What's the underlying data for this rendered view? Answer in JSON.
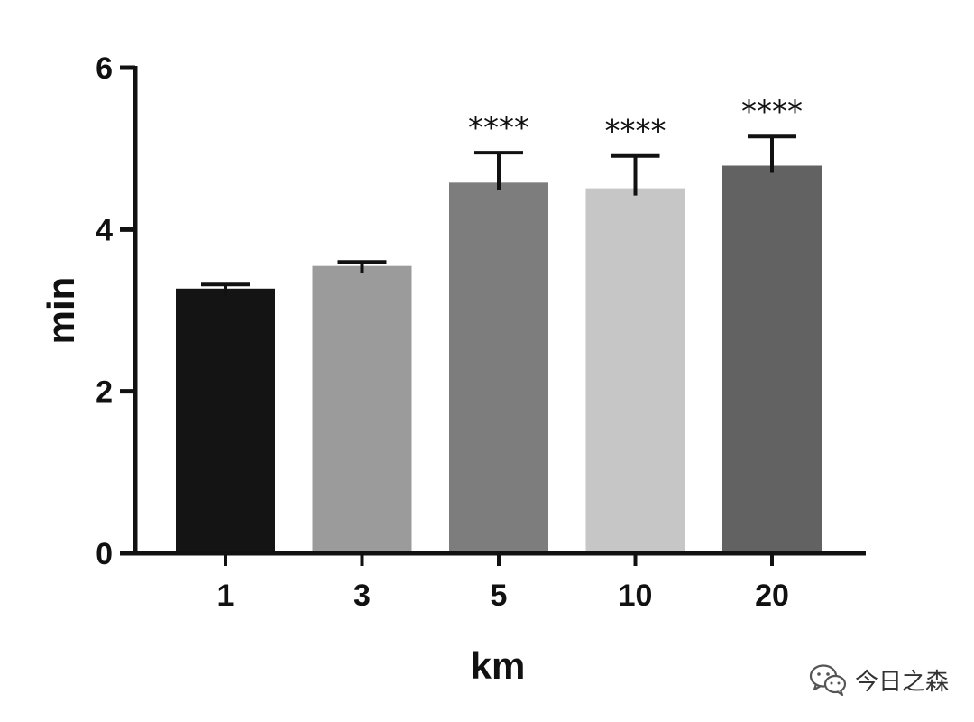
{
  "chart_data": {
    "type": "bar",
    "title": "",
    "xlabel": "km",
    "ylabel": "min",
    "ylim": [
      0,
      6
    ],
    "yticks": [
      0,
      2,
      4,
      6
    ],
    "grid": false,
    "categories": [
      "1",
      "3",
      "5",
      "10",
      "20"
    ],
    "values": [
      3.27,
      3.55,
      4.58,
      4.51,
      4.79
    ],
    "errors": [
      0.05,
      0.05,
      0.37,
      0.4,
      0.36
    ],
    "bar_colors": [
      "#141414",
      "#9b9b9b",
      "#7d7d7d",
      "#c6c6c6",
      "#626262"
    ],
    "annotations": [
      "",
      "",
      "****",
      "****",
      "****"
    ]
  },
  "watermark": {
    "icon": "wechat-icon",
    "text": "今日之森"
  }
}
